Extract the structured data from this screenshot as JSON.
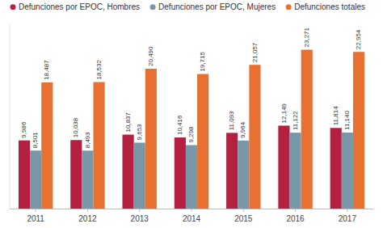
{
  "chart_data": {
    "type": "bar",
    "categories": [
      "2011",
      "2012",
      "2013",
      "2014",
      "2015",
      "2016",
      "2017"
    ],
    "series": [
      {
        "name": "Defunciones por EPOC, Hombres",
        "color": "#b52040",
        "values": [
          9986,
          10038,
          10837,
          10416,
          11093,
          12149,
          11814
        ],
        "value_labels": [
          "9,986",
          "10,038",
          "10,837",
          "10,416",
          "11,093",
          "12,149",
          "11,814"
        ]
      },
      {
        "name": "Defunciones por EPOC, Mujeres",
        "color": "#7898aa",
        "values": [
          8501,
          8493,
          9653,
          9298,
          9964,
          11122,
          11140
        ],
        "value_labels": [
          "8,501",
          "8,493",
          "9,653",
          "9,298",
          "9,964",
          "11,122",
          "11,140"
        ]
      },
      {
        "name": "Defunciones totales",
        "color": "#e87030",
        "values": [
          18487,
          18532,
          20490,
          19715,
          21057,
          23271,
          22954
        ],
        "value_labels": [
          "18,487",
          "18,532",
          "20,490",
          "19,715",
          "21,057",
          "23,271",
          "22,954"
        ]
      }
    ],
    "ylim": [
      0,
      27000
    ],
    "grid": false,
    "legend": "top",
    "data_labels": true,
    "tick_labels": "x"
  }
}
